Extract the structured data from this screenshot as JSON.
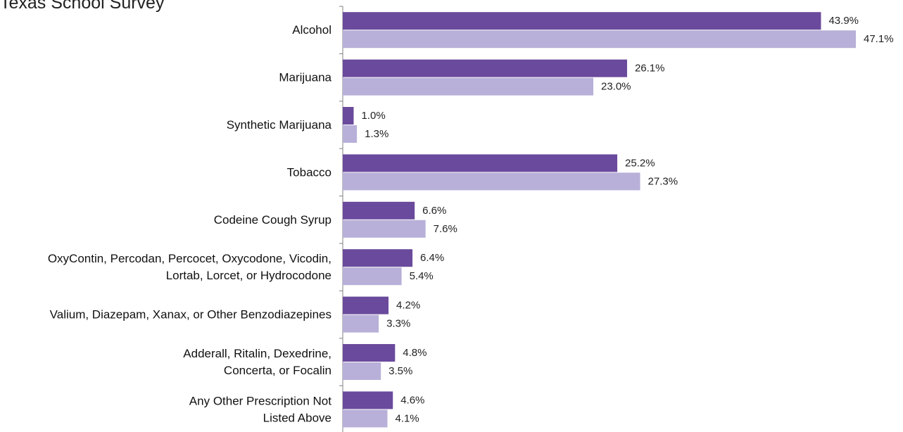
{
  "chart_data": {
    "type": "bar",
    "orientation": "horizontal",
    "title": "Texas School Survey",
    "categories": [
      [
        "Alcohol"
      ],
      [
        "Marijuana"
      ],
      [
        "Synthetic Marijuana"
      ],
      [
        "Tobacco"
      ],
      [
        "Codeine Cough Syrup"
      ],
      [
        "OxyContin, Percodan, Percocet, Oxycodone, Vicodin,",
        "Lortab, Lorcet, or Hydrocodone"
      ],
      [
        "Valium, Diazepam, Xanax, or Other Benzodiazepines"
      ],
      [
        "Adderall, Ritalin, Dexedrine,",
        "Concerta, or Focalin"
      ],
      [
        "Any Other Prescription Not",
        "Listed Above"
      ]
    ],
    "series": [
      {
        "color": "#6a4a9c",
        "values": [
          43.9,
          26.1,
          1.0,
          25.2,
          6.6,
          6.4,
          4.2,
          4.8,
          4.6
        ],
        "labels": [
          "43.9%",
          "26.1%",
          "1.0%",
          "25.2%",
          "6.6%",
          "6.4%",
          "4.2%",
          "4.8%",
          "4.6%"
        ]
      },
      {
        "color": "#b8b0d8",
        "values": [
          47.1,
          23.0,
          1.3,
          27.3,
          7.6,
          5.4,
          3.3,
          3.5,
          4.1
        ],
        "labels": [
          "47.1%",
          "23.0%",
          "1.3%",
          "27.3%",
          "7.6%",
          "5.4%",
          "3.3%",
          "3.5%",
          "4.1%"
        ]
      }
    ],
    "xlim": [
      0,
      47.1
    ],
    "grid": false,
    "legend": "none"
  }
}
